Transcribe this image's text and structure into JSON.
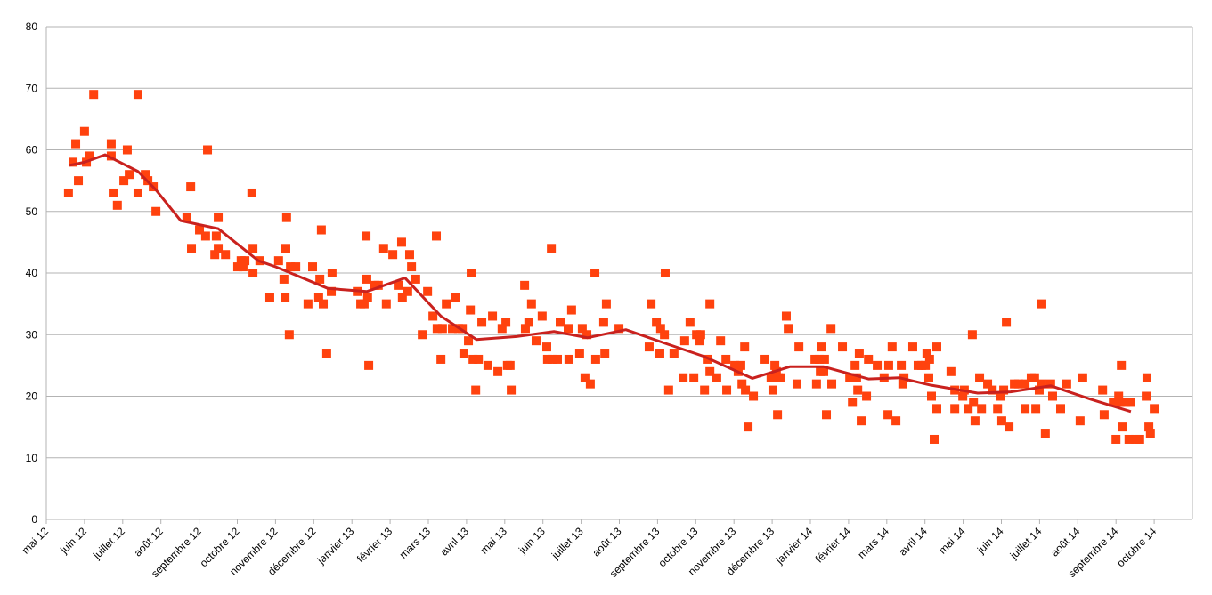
{
  "chart_data": {
    "type": "scatter",
    "xlim": [
      0,
      30
    ],
    "ylim": [
      0,
      80
    ],
    "yticks": [
      0,
      10,
      20,
      30,
      40,
      50,
      60,
      70,
      80
    ],
    "xticks": [
      {
        "value": 0,
        "label": "mai 12"
      },
      {
        "value": 1,
        "label": "juin 12"
      },
      {
        "value": 2,
        "label": "juillet 12"
      },
      {
        "value": 3,
        "label": "août 12"
      },
      {
        "value": 4,
        "label": "septembre 12"
      },
      {
        "value": 5,
        "label": "octobre 12"
      },
      {
        "value": 6,
        "label": "novembre 12"
      },
      {
        "value": 7,
        "label": "décembre 12"
      },
      {
        "value": 8,
        "label": "janvier 13"
      },
      {
        "value": 9,
        "label": "février 13"
      },
      {
        "value": 10,
        "label": "mars 13"
      },
      {
        "value": 11,
        "label": "avril 13"
      },
      {
        "value": 12,
        "label": "mai 13"
      },
      {
        "value": 13,
        "label": "juin 13"
      },
      {
        "value": 14,
        "label": "juillet 13"
      },
      {
        "value": 15,
        "label": "août 13"
      },
      {
        "value": 16,
        "label": "septembre 13"
      },
      {
        "value": 17,
        "label": "octobre 13"
      },
      {
        "value": 18,
        "label": "novembre 13"
      },
      {
        "value": 19,
        "label": "décembre 13"
      },
      {
        "value": 20,
        "label": "janvier 14"
      },
      {
        "value": 21,
        "label": "février 14"
      },
      {
        "value": 22,
        "label": "mars 14"
      },
      {
        "value": 23,
        "label": "avril 14"
      },
      {
        "value": 24,
        "label": "mai 14"
      },
      {
        "value": 25,
        "label": "juin 14"
      },
      {
        "value": 26,
        "label": "juillet 14"
      },
      {
        "value": 27,
        "label": "août 14"
      },
      {
        "value": 28,
        "label": "septembre 14"
      },
      {
        "value": 29,
        "label": "octobre 14"
      }
    ],
    "grid": true,
    "series": [
      {
        "type": "scatter",
        "color": "#ff420e",
        "x": [
          0.58,
          0.7,
          0.77,
          0.84,
          1.0,
          1.05,
          1.12,
          1.24,
          1.7,
          1.7,
          1.75,
          1.86,
          2.03,
          2.12,
          2.17,
          2.4,
          2.4,
          2.59,
          2.66,
          2.8,
          2.87,
          3.68,
          3.78,
          3.8,
          4.01,
          4.17,
          4.22,
          4.41,
          4.45,
          4.5,
          4.5,
          4.69,
          5.01,
          5.1,
          5.15,
          5.2,
          5.38,
          5.41,
          5.41,
          5.59,
          5.85,
          6.08,
          6.22,
          6.25,
          6.27,
          6.29,
          6.36,
          6.39,
          6.53,
          6.85,
          6.97,
          7.13,
          7.16,
          7.2,
          7.25,
          7.34,
          7.46,
          7.48,
          8.14,
          8.23,
          8.32,
          8.37,
          8.39,
          8.41,
          8.44,
          8.6,
          8.69,
          8.83,
          8.9,
          9.07,
          9.21,
          9.3,
          9.32,
          9.46,
          9.51,
          9.56,
          9.67,
          9.84,
          9.98,
          10.12,
          10.21,
          10.23,
          10.33,
          10.37,
          10.47,
          10.7,
          10.63,
          10.79,
          10.89,
          10.93,
          11.05,
          11.1,
          11.12,
          11.17,
          11.24,
          11.31,
          11.4,
          11.56,
          11.68,
          11.82,
          11.93,
          12.03,
          12.07,
          12.14,
          12.17,
          12.52,
          12.54,
          12.63,
          12.7,
          12.82,
          12.98,
          13.1,
          13.12,
          13.22,
          13.24,
          13.38,
          13.45,
          13.66,
          13.68,
          13.75,
          13.96,
          14.03,
          14.1,
          14.15,
          14.24,
          14.36,
          14.38,
          14.59,
          14.62,
          14.66,
          14.99,
          15.78,
          15.83,
          15.97,
          16.06,
          16.08,
          16.18,
          16.2,
          16.29,
          16.43,
          16.67,
          16.71,
          16.85,
          16.95,
          17.02,
          17.11,
          17.13,
          17.23,
          17.3,
          17.37,
          17.37,
          17.55,
          17.65,
          17.79,
          17.81,
          18.02,
          18.11,
          18.18,
          18.21,
          18.28,
          18.3,
          18.37,
          18.51,
          18.79,
          18.97,
          19.02,
          19.07,
          19.11,
          19.14,
          19.16,
          19.21,
          19.37,
          19.42,
          19.65,
          19.7,
          20.12,
          20.16,
          20.23,
          20.26,
          20.3,
          20.35,
          20.37,
          20.42,
          20.54,
          20.56,
          20.84,
          21.03,
          21.1,
          21.17,
          21.21,
          21.24,
          21.28,
          21.33,
          21.47,
          21.52,
          21.75,
          21.93,
          22.03,
          22.05,
          22.14,
          22.24,
          22.38,
          22.42,
          22.45,
          22.68,
          22.82,
          22.91,
          23.01,
          23.05,
          23.1,
          23.12,
          23.17,
          23.24,
          23.31,
          23.31,
          23.68,
          23.78,
          23.78,
          23.99,
          24.03,
          24.13,
          24.24,
          24.27,
          24.31,
          24.43,
          24.48,
          24.64,
          24.76,
          24.9,
          24.97,
          25.01,
          25.06,
          25.13,
          25.2,
          25.34,
          25.45,
          25.62,
          25.62,
          25.78,
          25.87,
          25.9,
          25.99,
          26.06,
          26.06,
          26.15,
          26.29,
          26.34,
          26.55,
          26.71,
          27.06,
          27.13,
          27.65,
          27.69,
          27.93,
          28.0,
          28.07,
          28.11,
          28.14,
          28.18,
          28.25,
          28.34,
          28.39,
          28.51,
          28.62,
          28.79,
          28.81,
          28.86,
          28.9,
          29.0
        ],
        "values": [
          53,
          58,
          61,
          55,
          63,
          58,
          59,
          69,
          61,
          59,
          53,
          51,
          55,
          60,
          56,
          69,
          53,
          56,
          55,
          54,
          50,
          49,
          54,
          44,
          47,
          46,
          60,
          43,
          46,
          49,
          44,
          43,
          41,
          42,
          41,
          42,
          53,
          44,
          40,
          42,
          36,
          42,
          39,
          36,
          44,
          49,
          30,
          41,
          41,
          35,
          41,
          36,
          39,
          47,
          35,
          27,
          37,
          40,
          37,
          35,
          35,
          46,
          39,
          36,
          25,
          38,
          38,
          44,
          35,
          43,
          38,
          45,
          36,
          37,
          43,
          41,
          39,
          30,
          37,
          33,
          46,
          31,
          26,
          31,
          35,
          36,
          31,
          31,
          31,
          27,
          29,
          34,
          40,
          26,
          21,
          26,
          32,
          25,
          33,
          24,
          31,
          32,
          25,
          25,
          21,
          38,
          31,
          32,
          35,
          29,
          33,
          28,
          26,
          44,
          26,
          26,
          32,
          31,
          26,
          34,
          27,
          31,
          23,
          30,
          22,
          40,
          26,
          32,
          27,
          35,
          31,
          28,
          35,
          32,
          27,
          31,
          30,
          40,
          21,
          27,
          23,
          29,
          32,
          23,
          30,
          29,
          30,
          21,
          26,
          35,
          24,
          23,
          29,
          26,
          21,
          25,
          24,
          25,
          22,
          28,
          21,
          15,
          20,
          26,
          23,
          21,
          25,
          24,
          17,
          23,
          23,
          33,
          31,
          22,
          28,
          26,
          22,
          26,
          24,
          28,
          24,
          26,
          17,
          31,
          22,
          28,
          23,
          19,
          25,
          23,
          21,
          27,
          16,
          20,
          26,
          25,
          23,
          17,
          25,
          28,
          16,
          25,
          22,
          23,
          28,
          25,
          25,
          25,
          27,
          23,
          26,
          20,
          13,
          28,
          18,
          24,
          21,
          18,
          20,
          21,
          18,
          30,
          19,
          16,
          23,
          18,
          22,
          21,
          18,
          20,
          16,
          21,
          32,
          15,
          22,
          22,
          18,
          22,
          23,
          23,
          18,
          21,
          35,
          22,
          14,
          22,
          20,
          18,
          22,
          16,
          23,
          21,
          17,
          19,
          13,
          20,
          19,
          25,
          15,
          19,
          13,
          19,
          13,
          13,
          20,
          23,
          15,
          14,
          18
        ]
      },
      {
        "type": "line",
        "color": "#c9211e",
        "x": [
          0.61,
          1.0,
          1.54,
          2.4,
          2.87,
          3.52,
          4.5,
          5.55,
          6.01,
          7.37,
          8.39,
          9.39,
          10.33,
          11.26,
          12.31,
          13.29,
          14.17,
          15.17,
          16.15,
          17.2,
          18.48,
          19.46,
          20.35,
          21.52,
          22.33,
          23.15,
          24.38,
          25.24,
          26.29,
          27.34,
          28.39
        ],
        "values": [
          57.5,
          58,
          59.2,
          56.5,
          53.5,
          48.5,
          47.2,
          42,
          41,
          37.5,
          37,
          39.2,
          33,
          29.2,
          29.7,
          30.5,
          29.5,
          30.8,
          28.7,
          26.5,
          22.9,
          24.8,
          24.8,
          22.8,
          23,
          21.8,
          20.5,
          20.7,
          21.7,
          19.5,
          17.5
        ]
      }
    ]
  }
}
